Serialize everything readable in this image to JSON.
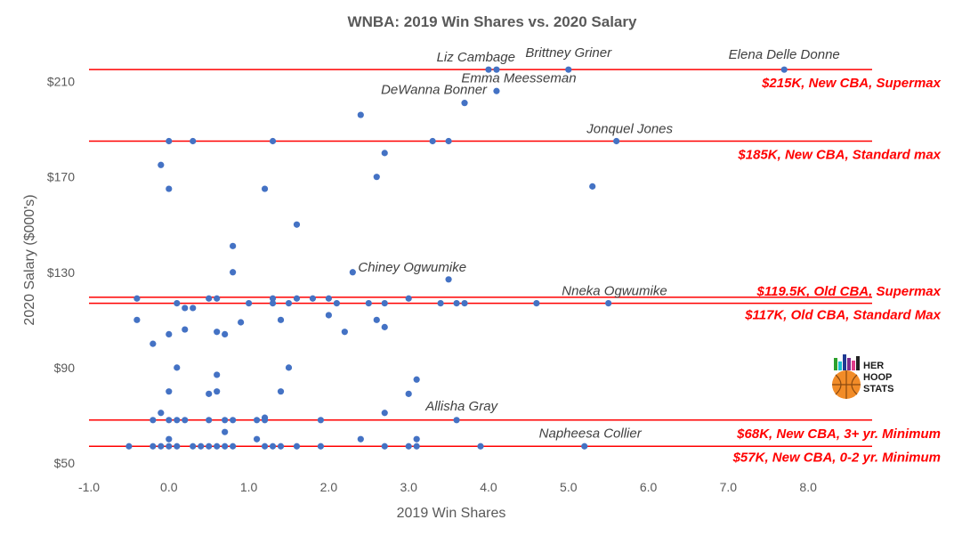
{
  "chart_data": {
    "type": "scatter",
    "title": "WNBA: 2019 Win Shares vs. 2020 Salary",
    "xlabel": "2019 Win Shares",
    "ylabel": "2020 Salary ($000's)",
    "xlim": [
      -1.0,
      8.8
    ],
    "ylim": [
      50,
      230
    ],
    "x_ticks": [
      -1.0,
      0.0,
      1.0,
      2.0,
      3.0,
      4.0,
      5.0,
      6.0,
      7.0,
      8.0
    ],
    "x_tick_labels": [
      "-1.0",
      "0.0",
      "1.0",
      "2.0",
      "3.0",
      "4.0",
      "5.0",
      "6.0",
      "7.0",
      "8.0"
    ],
    "y_ticks": [
      50,
      90,
      130,
      170,
      210
    ],
    "y_tick_labels": [
      "$50",
      "$90",
      "$130",
      "$170",
      "$210"
    ],
    "grid": false,
    "marker_color": "#4472c4",
    "reference_color": "#ff0000",
    "reference_lines": [
      {
        "y": 215,
        "label": "$215K, New CBA, Supermax"
      },
      {
        "y": 185,
        "label": "$185K, New CBA, Standard max"
      },
      {
        "y": 119.5,
        "label": "$119.5K, Old CBA, Supermax"
      },
      {
        "y": 117,
        "label": "$117K, Old CBA, Standard Max"
      },
      {
        "y": 68,
        "label": "$68K, New CBA, 3+ yr. Minimum"
      },
      {
        "y": 57,
        "label": "$57K, New CBA, 0-2 yr. Minimum"
      }
    ],
    "annotations": [
      {
        "text": "Liz Cambage",
        "x": 4.0,
        "y": 215
      },
      {
        "text": "Brittney Griner",
        "x": 5.0,
        "y": 215
      },
      {
        "text": "Elena Delle Donne",
        "x": 7.7,
        "y": 215
      },
      {
        "text": "DeWanna Bonner",
        "x": 3.7,
        "y": 201
      },
      {
        "text": "Emma Meesseman",
        "x": 4.1,
        "y": 206
      },
      {
        "text": "Jonquel Jones",
        "x": 5.6,
        "y": 185
      },
      {
        "text": "Chiney Ogwumike",
        "x": 3.5,
        "y": 127
      },
      {
        "text": "Nneka Ogwumike",
        "x": 5.5,
        "y": 117
      },
      {
        "text": "Allisha Gray",
        "x": 3.6,
        "y": 68
      },
      {
        "text": "Napheesa Collier",
        "x": 5.2,
        "y": 57
      }
    ],
    "points": [
      [
        7.7,
        215
      ],
      [
        4.0,
        215
      ],
      [
        4.1,
        215
      ],
      [
        5.0,
        215
      ],
      [
        4.1,
        206
      ],
      [
        3.7,
        201
      ],
      [
        2.4,
        196
      ],
      [
        5.6,
        185
      ],
      [
        0.0,
        185
      ],
      [
        0.3,
        185
      ],
      [
        1.3,
        185
      ],
      [
        3.3,
        185
      ],
      [
        3.5,
        185
      ],
      [
        2.7,
        180
      ],
      [
        -0.1,
        175
      ],
      [
        2.6,
        170
      ],
      [
        0.0,
        165
      ],
      [
        1.2,
        165
      ],
      [
        5.3,
        166
      ],
      [
        1.6,
        150
      ],
      [
        0.8,
        141
      ],
      [
        0.8,
        130
      ],
      [
        2.3,
        130
      ],
      [
        3.5,
        127
      ],
      [
        -0.4,
        119
      ],
      [
        0.5,
        119
      ],
      [
        0.6,
        119
      ],
      [
        1.3,
        119
      ],
      [
        1.6,
        119
      ],
      [
        1.8,
        119
      ],
      [
        2.0,
        119
      ],
      [
        3.0,
        119
      ],
      [
        0.1,
        117
      ],
      [
        1.0,
        117
      ],
      [
        1.3,
        117
      ],
      [
        1.5,
        117
      ],
      [
        2.1,
        117
      ],
      [
        2.5,
        117
      ],
      [
        2.7,
        117
      ],
      [
        3.4,
        117
      ],
      [
        3.6,
        117
      ],
      [
        3.7,
        117
      ],
      [
        4.6,
        117
      ],
      [
        5.5,
        117
      ],
      [
        0.2,
        115
      ],
      [
        0.3,
        115
      ],
      [
        2.0,
        112
      ],
      [
        -0.4,
        110
      ],
      [
        0.9,
        109
      ],
      [
        1.4,
        110
      ],
      [
        2.6,
        110
      ],
      [
        0.2,
        106
      ],
      [
        2.7,
        107
      ],
      [
        0.0,
        104
      ],
      [
        0.6,
        105
      ],
      [
        0.7,
        104
      ],
      [
        2.2,
        105
      ],
      [
        -0.2,
        100
      ],
      [
        0.1,
        90
      ],
      [
        1.5,
        90
      ],
      [
        0.6,
        87
      ],
      [
        3.1,
        85
      ],
      [
        0.0,
        80
      ],
      [
        0.6,
        80
      ],
      [
        1.4,
        80
      ],
      [
        0.5,
        79
      ],
      [
        3.0,
        79
      ],
      [
        -0.1,
        71
      ],
      [
        2.7,
        71
      ],
      [
        -0.2,
        68
      ],
      [
        0.0,
        68
      ],
      [
        0.1,
        68
      ],
      [
        0.2,
        68
      ],
      [
        0.5,
        68
      ],
      [
        0.7,
        68
      ],
      [
        0.8,
        68
      ],
      [
        1.1,
        68
      ],
      [
        1.2,
        69
      ],
      [
        1.2,
        68
      ],
      [
        1.9,
        68
      ],
      [
        3.6,
        68
      ],
      [
        0.7,
        63
      ],
      [
        0.0,
        60
      ],
      [
        1.1,
        60
      ],
      [
        2.4,
        60
      ],
      [
        3.1,
        60
      ],
      [
        -0.5,
        57
      ],
      [
        -0.2,
        57
      ],
      [
        -0.1,
        57
      ],
      [
        0.0,
        57
      ],
      [
        0.1,
        57
      ],
      [
        0.3,
        57
      ],
      [
        0.4,
        57
      ],
      [
        0.5,
        57
      ],
      [
        0.6,
        57
      ],
      [
        0.7,
        57
      ],
      [
        0.8,
        57
      ],
      [
        1.2,
        57
      ],
      [
        1.3,
        57
      ],
      [
        1.4,
        57
      ],
      [
        1.6,
        57
      ],
      [
        1.9,
        57
      ],
      [
        2.7,
        57
      ],
      [
        3.0,
        57
      ],
      [
        3.1,
        57
      ],
      [
        3.9,
        57
      ],
      [
        5.2,
        57
      ]
    ]
  },
  "logo": {
    "line1": "HER",
    "line2": "HOOP",
    "line3": "STATS"
  }
}
